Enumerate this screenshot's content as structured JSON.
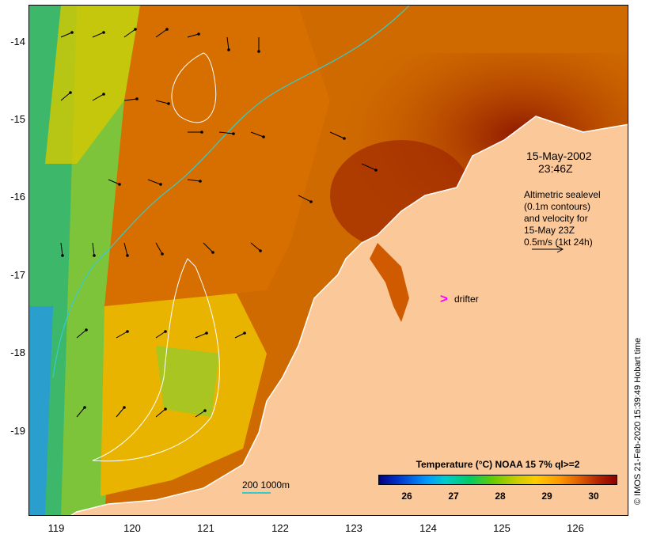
{
  "map": {
    "y_axis_labels": [
      "-14",
      "-15",
      "-16",
      "-17",
      "-18",
      "-19"
    ],
    "x_axis_labels": [
      "119",
      "120",
      "121",
      "122",
      "123",
      "124",
      "125",
      "126"
    ],
    "date_line1": "15-May-2002",
    "date_line2": "23:46Z",
    "altimetry_line1": "Altimetric sealevel",
    "altimetry_line2": "(0.1m contours)",
    "altimetry_line3": "and velocity for",
    "altimetry_line4": "15-May 23Z",
    "altimetry_line5": "0.5m/s (1kt 24h)",
    "drifter_symbol": ">",
    "drifter_label": "drifter",
    "depth_legend": "200  1000m",
    "colorbar_title": "Temperature (°C) NOAA 15 7% ql>=2",
    "colorbar_ticks": [
      "26",
      "27",
      "28",
      "29",
      "30"
    ],
    "credit": "© IMOS 21-Feb-2020 15:39:49 Hobart time",
    "colors": {
      "land": "#fbc89a",
      "warm": "#b83a00",
      "mid": "#e08a00",
      "cool": "#e8c400",
      "green": "#66c02a",
      "blue": "#22aadd",
      "contour": "#ffffff",
      "isobath": "#33cccc",
      "drifter": "#ff00ff"
    }
  }
}
